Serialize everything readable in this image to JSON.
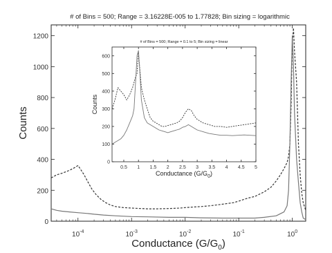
{
  "chart_data": [
    {
      "type": "line",
      "title": "# of Bins = 500; Range = 3.16228E-005 to 1.77828; Bin sizing = logarithmic",
      "xlabel_main": "Conductance (G/G",
      "xlabel_sub": "0",
      "xlabel_tail": ")",
      "ylabel": "Counts",
      "xscale": "log",
      "xlim": [
        3.16228e-05,
        1.77828
      ],
      "ylim": [
        0,
        1270
      ],
      "xticks": [
        0.0001,
        0.001,
        0.01,
        0.1,
        1
      ],
      "xtick_labels": [
        {
          "base": "10",
          "exp": "-4"
        },
        {
          "base": "10",
          "exp": "-3"
        },
        {
          "base": "10",
          "exp": "-2"
        },
        {
          "base": "10",
          "exp": "-1"
        },
        {
          "base": "10",
          "exp": "0"
        }
      ],
      "yticks": [
        0,
        200,
        400,
        600,
        800,
        1000,
        1200
      ],
      "ytick_labels": [
        "0",
        "200",
        "400",
        "600",
        "800",
        "1000",
        "1200"
      ],
      "series": [
        {
          "style": "dashed",
          "color": "#333333",
          "x": [
            3.16e-05,
            4e-05,
            5e-05,
            6e-05,
            7e-05,
            8e-05,
            9e-05,
            0.0001,
            0.00011,
            0.00013,
            0.00015,
            0.00018,
            0.00022,
            0.00027,
            0.00033,
            0.0004,
            0.0005,
            0.0007,
            0.001,
            0.0015,
            0.002,
            0.003,
            0.005,
            0.008,
            0.01,
            0.015,
            0.02,
            0.03,
            0.05,
            0.08,
            0.1,
            0.15,
            0.2,
            0.3,
            0.4,
            0.5,
            0.6,
            0.7,
            0.8,
            0.85,
            0.9,
            0.95,
            1.0,
            1.05,
            1.1,
            1.2,
            1.3,
            1.4,
            1.5,
            1.6,
            1.7,
            1.778
          ],
          "y": [
            280,
            300,
            310,
            320,
            330,
            340,
            350,
            360,
            340,
            300,
            260,
            210,
            170,
            140,
            120,
            105,
            95,
            88,
            85,
            82,
            80,
            80,
            82,
            85,
            88,
            92,
            95,
            100,
            110,
            120,
            130,
            150,
            160,
            190,
            220,
            260,
            300,
            340,
            380,
            420,
            500,
            750,
            1150,
            1250,
            1100,
            900,
            500,
            300,
            180,
            120,
            90,
            70
          ]
        },
        {
          "style": "solid",
          "color": "#777777",
          "x": [
            3.16e-05,
            4e-05,
            5e-05,
            7e-05,
            0.0001,
            0.00015,
            0.0002,
            0.0003,
            0.0005,
            0.001,
            0.002,
            0.005,
            0.01,
            0.02,
            0.05,
            0.1,
            0.2,
            0.3,
            0.5,
            0.7,
            0.8,
            0.85,
            0.9,
            0.95,
            1.0,
            1.05,
            1.1,
            1.2,
            1.3,
            1.4,
            1.5,
            1.6,
            1.778
          ],
          "y": [
            80,
            70,
            65,
            60,
            55,
            50,
            45,
            40,
            35,
            30,
            28,
            25,
            25,
            22,
            20,
            20,
            20,
            25,
            35,
            60,
            100,
            200,
            500,
            900,
            1200,
            1000,
            700,
            400,
            250,
            120,
            60,
            20,
            10
          ]
        }
      ]
    },
    {
      "type": "line",
      "title": "# of Bins = 500; Range = 0.1 to 5; Bin sizing = linear",
      "xlabel_main": "Conductance (G/G",
      "xlabel_sub": "0",
      "xlabel_tail": ")",
      "ylabel": "Counts",
      "xscale": "linear",
      "xlim": [
        0.1,
        5
      ],
      "ylim": [
        0,
        650
      ],
      "xticks": [
        0.5,
        1,
        1.5,
        2,
        2.5,
        3,
        3.5,
        4,
        4.5,
        5
      ],
      "xtick_labels": [
        "0.5",
        "1",
        "1.5",
        "2",
        "2.5",
        "3",
        "3.5",
        "4",
        "4.5",
        "5"
      ],
      "yticks": [
        0,
        100,
        200,
        300,
        400,
        500,
        600
      ],
      "ytick_labels": [
        "0",
        "100",
        "200",
        "300",
        "400",
        "500",
        "600"
      ],
      "series": [
        {
          "style": "dashed",
          "color": "#333333",
          "x": [
            0.1,
            0.2,
            0.3,
            0.4,
            0.5,
            0.6,
            0.7,
            0.8,
            0.9,
            0.95,
            1.0,
            1.05,
            1.1,
            1.2,
            1.3,
            1.4,
            1.5,
            1.6,
            1.7,
            1.8,
            1.9,
            2.0,
            2.1,
            2.2,
            2.3,
            2.4,
            2.5,
            2.6,
            2.7,
            2.8,
            2.9,
            3.0,
            3.2,
            3.4,
            3.6,
            3.8,
            4.0,
            4.2,
            4.4,
            4.6,
            4.8,
            5.0
          ],
          "y": [
            300,
            350,
            420,
            400,
            380,
            350,
            380,
            420,
            480,
            500,
            620,
            520,
            420,
            350,
            300,
            250,
            230,
            220,
            210,
            200,
            200,
            205,
            210,
            215,
            220,
            230,
            250,
            280,
            300,
            290,
            260,
            240,
            220,
            210,
            200,
            200,
            195,
            200,
            205,
            210,
            215,
            220
          ]
        },
        {
          "style": "solid",
          "color": "#777777",
          "x": [
            0.1,
            0.2,
            0.3,
            0.4,
            0.5,
            0.6,
            0.7,
            0.8,
            0.85,
            0.9,
            0.95,
            1.0,
            1.05,
            1.1,
            1.2,
            1.3,
            1.4,
            1.5,
            1.6,
            1.7,
            1.8,
            1.9,
            2.0,
            2.1,
            2.2,
            2.3,
            2.4,
            2.5,
            2.6,
            2.7,
            2.8,
            2.9,
            3.0,
            3.2,
            3.4,
            3.6,
            3.8,
            4.0,
            4.2,
            4.4,
            4.6,
            4.8,
            5.0
          ],
          "y": [
            100,
            110,
            120,
            130,
            150,
            180,
            220,
            260,
            300,
            450,
            600,
            630,
            500,
            350,
            250,
            220,
            210,
            200,
            190,
            180,
            175,
            170,
            165,
            170,
            175,
            180,
            185,
            195,
            200,
            210,
            200,
            190,
            180,
            170,
            160,
            155,
            150,
            150,
            148,
            150,
            152,
            150,
            148
          ]
        }
      ]
    }
  ]
}
